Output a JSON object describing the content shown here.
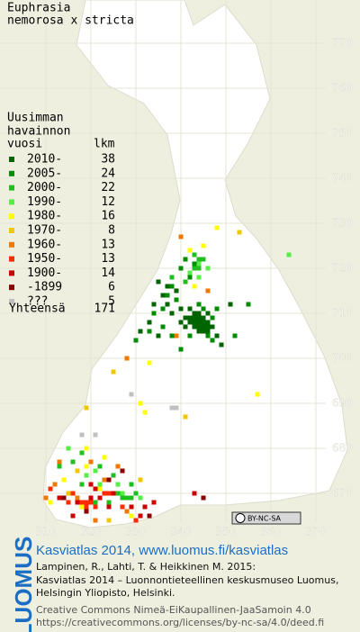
{
  "title": "Euphrasia",
  "subtitle": "nemorosa x stricta",
  "legend_title": [
    "Uusimman",
    "havainnon"
  ],
  "legend_col_period": "vuosi",
  "legend_col_count": "lkm",
  "xlim": [
    302,
    380
  ],
  "ylim": [
    664,
    780
  ],
  "xticks": [
    310,
    320,
    330,
    340,
    350,
    360,
    370
  ],
  "yticks": [
    770,
    760,
    750,
    740,
    730,
    720,
    710,
    700,
    690,
    680,
    670
  ],
  "legend": [
    {
      "label": "2010-",
      "count": 38,
      "color": "#006400",
      "points": [
        [
          341,
          709
        ],
        [
          342,
          709
        ],
        [
          343,
          709
        ],
        [
          344,
          709
        ],
        [
          345,
          709
        ],
        [
          342,
          708
        ],
        [
          343,
          708
        ],
        [
          344,
          708
        ],
        [
          345,
          708
        ],
        [
          346,
          708
        ],
        [
          343,
          707
        ],
        [
          344,
          707
        ],
        [
          345,
          707
        ],
        [
          346,
          707
        ],
        [
          347,
          707
        ],
        [
          344,
          706
        ],
        [
          345,
          706
        ],
        [
          346,
          706
        ],
        [
          343,
          710
        ],
        [
          344,
          710
        ],
        [
          340,
          708
        ],
        [
          341,
          707
        ],
        [
          338,
          710
        ],
        [
          337,
          712
        ],
        [
          336,
          714
        ],
        [
          339,
          715
        ],
        [
          337,
          716
        ],
        [
          334,
          712
        ],
        [
          331,
          706
        ],
        [
          335,
          705
        ],
        [
          348,
          705
        ],
        [
          351,
          712
        ],
        [
          349,
          703
        ],
        [
          335,
          717
        ],
        [
          340,
          711
        ],
        [
          342,
          711
        ],
        [
          346,
          710
        ],
        [
          333,
          708
        ]
      ]
    },
    {
      "label": "2005-",
      "count": 24,
      "color": "#008c00",
      "points": [
        [
          341,
          722
        ],
        [
          343,
          721
        ],
        [
          337,
          714
        ],
        [
          336,
          711
        ],
        [
          339,
          713
        ],
        [
          342,
          718
        ],
        [
          340,
          720
        ],
        [
          338,
          716
        ],
        [
          344,
          709
        ],
        [
          347,
          709
        ],
        [
          346,
          705
        ],
        [
          334,
          710
        ],
        [
          333,
          706
        ],
        [
          338,
          705
        ],
        [
          345,
          711
        ],
        [
          355,
          712
        ],
        [
          330,
          704
        ],
        [
          348,
          711
        ],
        [
          340,
          702
        ],
        [
          344,
          712
        ],
        [
          336,
          707
        ],
        [
          352,
          705
        ],
        [
          347,
          704
        ],
        [
          342,
          705
        ]
      ]
    },
    {
      "label": "2000-",
      "count": 22,
      "color": "#1fbf1f",
      "points": [
        [
          343,
          723
        ],
        [
          344,
          722
        ],
        [
          345,
          722
        ],
        [
          343,
          720
        ],
        [
          344,
          720
        ],
        [
          326,
          670
        ],
        [
          327,
          669
        ],
        [
          328,
          669
        ],
        [
          329,
          669
        ],
        [
          325,
          674
        ],
        [
          322,
          676
        ],
        [
          316,
          677
        ],
        [
          313,
          676
        ],
        [
          318,
          679
        ],
        [
          345,
          708
        ],
        [
          341,
          717
        ],
        [
          338,
          718
        ],
        [
          321,
          668
        ],
        [
          330,
          670
        ],
        [
          329,
          672
        ],
        [
          318,
          672
        ],
        [
          324,
          668
        ]
      ]
    },
    {
      "label": "1990-",
      "count": 12,
      "color": "#55ee44",
      "points": [
        [
          344,
          721
        ],
        [
          346,
          720
        ],
        [
          342,
          719
        ],
        [
          364,
          723
        ],
        [
          344,
          718
        ],
        [
          327,
          670
        ],
        [
          331,
          669
        ],
        [
          326,
          672
        ],
        [
          321,
          675
        ],
        [
          315,
          680
        ],
        [
          319,
          674
        ],
        [
          322,
          672
        ]
      ]
    },
    {
      "label": "1980-",
      "count": 16,
      "color": "#ffff00",
      "points": [
        [
          348,
          729
        ],
        [
          342,
          724
        ],
        [
          333,
          699
        ],
        [
          331,
          690
        ],
        [
          332,
          688
        ],
        [
          357,
          692
        ],
        [
          311,
          668
        ],
        [
          319,
          680
        ],
        [
          323,
          678
        ],
        [
          319,
          676
        ],
        [
          314,
          673
        ],
        [
          343,
          716
        ],
        [
          318,
          667
        ],
        [
          329,
          665
        ],
        [
          322,
          671
        ],
        [
          345,
          725
        ]
      ]
    },
    {
      "label": "1970-",
      "count": 8,
      "color": "#f0c800",
      "points": [
        [
          325,
          697
        ],
        [
          353,
          728
        ],
        [
          341,
          687
        ],
        [
          319,
          689
        ],
        [
          317,
          675
        ],
        [
          324,
          664
        ],
        [
          331,
          673
        ],
        [
          315,
          670
        ]
      ]
    },
    {
      "label": "1960-",
      "count": 13,
      "color": "#f07800",
      "points": [
        [
          340,
          727
        ],
        [
          346,
          715
        ],
        [
          328,
          700
        ],
        [
          339,
          705
        ],
        [
          312,
          672
        ],
        [
          313,
          677
        ],
        [
          320,
          677
        ],
        [
          323,
          673
        ],
        [
          328,
          666
        ],
        [
          317,
          669
        ],
        [
          310,
          669
        ],
        [
          326,
          676
        ],
        [
          321,
          664
        ]
      ]
    },
    {
      "label": "1950-",
      "count": 13,
      "color": "#ff2a00",
      "points": [
        [
          318,
          668
        ],
        [
          319,
          668
        ],
        [
          320,
          668
        ],
        [
          321,
          667
        ],
        [
          318,
          667
        ],
        [
          319,
          667
        ],
        [
          323,
          670
        ],
        [
          324,
          670
        ],
        [
          316,
          670
        ],
        [
          315,
          668
        ],
        [
          327,
          667
        ],
        [
          330,
          664
        ],
        [
          311,
          671
        ]
      ]
    },
    {
      "label": "1900-",
      "count": 14,
      "color": "#cc0000",
      "points": [
        [
          320,
          669
        ],
        [
          322,
          669
        ],
        [
          317,
          668
        ],
        [
          324,
          667
        ],
        [
          332,
          667
        ],
        [
          343,
          670
        ],
        [
          334,
          668
        ],
        [
          313,
          669
        ],
        [
          325,
          670
        ],
        [
          329,
          667
        ],
        [
          331,
          665
        ],
        [
          316,
          665
        ],
        [
          321,
          671
        ],
        [
          320,
          672
        ]
      ]
    },
    {
      "label": "-1899",
      "count": 6,
      "color": "#8b0000",
      "points": [
        [
          327,
          675
        ],
        [
          345,
          669
        ],
        [
          333,
          665
        ],
        [
          314,
          669
        ],
        [
          324,
          673
        ],
        [
          319,
          666
        ]
      ]
    },
    {
      "label": "???",
      "count": 5,
      "color": "#c0c0c0",
      "points": [
        [
          321,
          683
        ],
        [
          318,
          683
        ],
        [
          338,
          689
        ],
        [
          339,
          689
        ],
        [
          329,
          692
        ]
      ]
    }
  ],
  "total_label": "Yhteensä",
  "total": 171,
  "badge": "BY-NC-SA",
  "brand": "LUOMUS",
  "footer": {
    "headline": "Kasviatlas 2014, www.luomus.fi/kasviatlas",
    "citation": [
      "Lampinen, R., Lahti, T. & Heikkinen M. 2015:",
      "Kasviatlas 2014 – Luonnontieteellinen keskusmuseo Luomus,",
      "Helsingin Yliopisto, Helsinki."
    ],
    "license": [
      "Creative Commons Nimeä-EiKaupallinen-JaaSamoin 4.0",
      "https://creativecommons.org/licenses/by-nc-sa/4.0/deed.fi"
    ]
  }
}
